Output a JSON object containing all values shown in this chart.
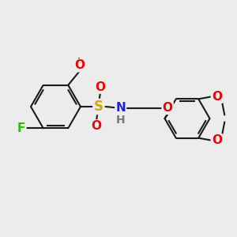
{
  "bg_color": "#ececec",
  "bond_color": "#1a1a1a",
  "bond_width": 1.5,
  "atom_colors": {
    "F": "#33bb00",
    "O": "#ee0000",
    "N": "#2222cc",
    "S": "#ccaa00",
    "H": "#777777",
    "C": "#1a1a1a"
  },
  "font_size_atom": 11,
  "font_size_small": 9,
  "figsize": [
    3.0,
    3.0
  ],
  "dpi": 100,
  "xlim": [
    0,
    10
  ],
  "ylim": [
    0,
    10
  ]
}
